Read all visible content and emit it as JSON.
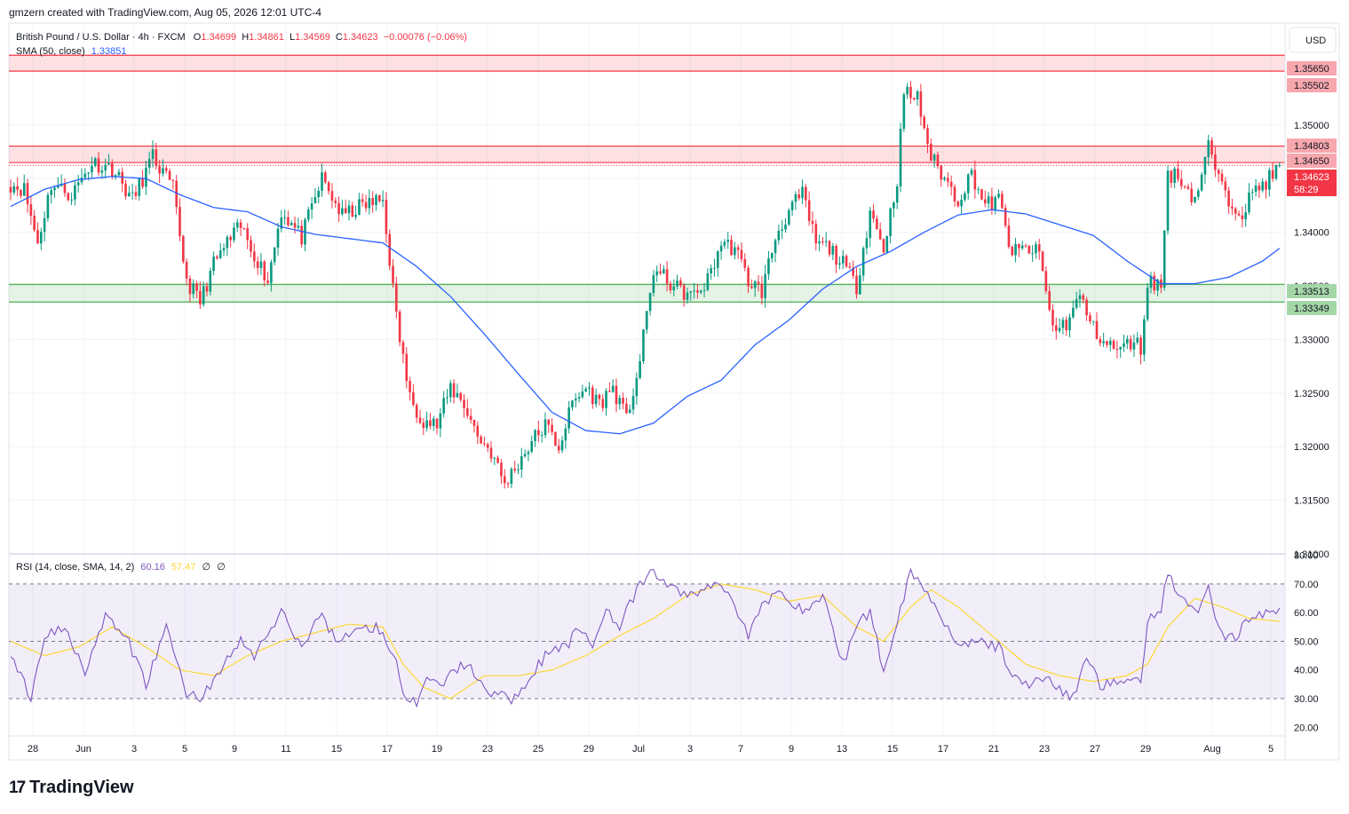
{
  "credit": "gmzern created with TradingView.com, Aug 05, 2026 12:01 UTC-4",
  "legend": {
    "symbol": "British Pound / U.S. Dollar · 4h · FXCM",
    "open_label": "O",
    "open": "1.34699",
    "high_label": "H",
    "high": "1.34861",
    "low_label": "L",
    "low": "1.34569",
    "close_label": "C",
    "close": "1.34623",
    "change": "−0.00076 (−0.06%)",
    "sma_label": "SMA (50, close)",
    "sma_value": "1.33851",
    "rsi_label": "RSI (14, close, SMA, 14, 2)",
    "rsi_value": "60.16",
    "rsi_ma_value": "57.47",
    "rsi_extra1": "∅",
    "rsi_extra2": "∅"
  },
  "currency_button": "USD",
  "brand": "TradingView",
  "colors": {
    "up": "#089981",
    "down": "#f23645",
    "sma": "#2962ff",
    "rsi": "#7e57c2",
    "rsi_ma": "#fdd835",
    "resistance": "#f23645",
    "support": "#4caf50"
  },
  "chart_data": [
    {
      "type": "candlestick",
      "title": "British Pound / U.S. Dollar · 4h · FXCM",
      "ylim": [
        1.31,
        1.3595
      ],
      "y_ticks": [
        "1.31000",
        "1.31500",
        "1.32000",
        "1.32500",
        "1.33000",
        "1.33500",
        "1.34000",
        "1.34500",
        "1.35000"
      ],
      "x_ticks": [
        "28",
        "Jun",
        "3",
        "5",
        "9",
        "11",
        "15",
        "17",
        "19",
        "23",
        "25",
        "29",
        "Jul",
        "3",
        "7",
        "9",
        "13",
        "15",
        "17",
        "21",
        "23",
        "27",
        "29",
        "Aug",
        "5"
      ],
      "price_labels": [
        {
          "text": "1.35650",
          "kind": "resistance",
          "value": 1.3565
        },
        {
          "text": "1.35502",
          "kind": "resistance",
          "value": 1.35502
        },
        {
          "text": "1.34803",
          "kind": "resistance",
          "value": 1.34803
        },
        {
          "text": "1.34650",
          "kind": "resistance",
          "value": 1.3465
        },
        {
          "text": "1.34623",
          "kind": "last",
          "value": 1.34623
        },
        {
          "text": "58:29",
          "kind": "countdown",
          "value": 1.34515
        },
        {
          "text": "1.33513",
          "kind": "support",
          "value": 1.33513
        },
        {
          "text": "1.33349",
          "kind": "support",
          "value": 1.33349
        }
      ],
      "zones": [
        {
          "kind": "resistance",
          "from": 1.35502,
          "to": 1.3565
        },
        {
          "kind": "resistance",
          "from": 1.3465,
          "to": 1.34803
        },
        {
          "kind": "support",
          "from": 1.33349,
          "to": 1.33513
        }
      ],
      "last_price": 1.34623,
      "price_anchors": [
        [
          0,
          1.3445
        ],
        [
          4,
          1.344
        ],
        [
          8,
          1.339
        ],
        [
          12,
          1.3445
        ],
        [
          18,
          1.3435
        ],
        [
          24,
          1.3465
        ],
        [
          30,
          1.346
        ],
        [
          36,
          1.343
        ],
        [
          42,
          1.347
        ],
        [
          48,
          1.344
        ],
        [
          52,
          1.3355
        ],
        [
          56,
          1.3335
        ],
        [
          60,
          1.337
        ],
        [
          64,
          1.339
        ],
        [
          68,
          1.3405
        ],
        [
          72,
          1.338
        ],
        [
          76,
          1.3355
        ],
        [
          80,
          1.342
        ],
        [
          86,
          1.3395
        ],
        [
          92,
          1.345
        ],
        [
          98,
          1.3415
        ],
        [
          104,
          1.3425
        ],
        [
          110,
          1.343
        ],
        [
          114,
          1.332
        ],
        [
          118,
          1.3245
        ],
        [
          122,
          1.3225
        ],
        [
          126,
          1.322
        ],
        [
          130,
          1.3255
        ],
        [
          134,
          1.324
        ],
        [
          138,
          1.321
        ],
        [
          142,
          1.3195
        ],
        [
          146,
          1.3165
        ],
        [
          150,
          1.3185
        ],
        [
          154,
          1.3205
        ],
        [
          158,
          1.322
        ],
        [
          162,
          1.32
        ],
        [
          166,
          1.324
        ],
        [
          170,
          1.3255
        ],
        [
          174,
          1.324
        ],
        [
          178,
          1.3255
        ],
        [
          182,
          1.3225
        ],
        [
          186,
          1.328
        ],
        [
          190,
          1.3365
        ],
        [
          194,
          1.3355
        ],
        [
          198,
          1.3345
        ],
        [
          202,
          1.334
        ],
        [
          206,
          1.3355
        ],
        [
          210,
          1.339
        ],
        [
          214,
          1.3385
        ],
        [
          218,
          1.3355
        ],
        [
          222,
          1.3345
        ],
        [
          226,
          1.3395
        ],
        [
          230,
          1.342
        ],
        [
          234,
          1.3435
        ],
        [
          238,
          1.339
        ],
        [
          242,
          1.3385
        ],
        [
          246,
          1.337
        ],
        [
          250,
          1.335
        ],
        [
          254,
          1.342
        ],
        [
          258,
          1.3385
        ],
        [
          262,
          1.345
        ],
        [
          264,
          1.353
        ],
        [
          268,
          1.3525
        ],
        [
          272,
          1.347
        ],
        [
          276,
          1.345
        ],
        [
          280,
          1.343
        ],
        [
          284,
          1.3455
        ],
        [
          288,
          1.3425
        ],
        [
          292,
          1.343
        ],
        [
          296,
          1.338
        ],
        [
          300,
          1.3385
        ],
        [
          304,
          1.338
        ],
        [
          308,
          1.331
        ],
        [
          312,
          1.3315
        ],
        [
          316,
          1.334
        ],
        [
          320,
          1.331
        ],
        [
          324,
          1.3295
        ],
        [
          328,
          1.329
        ],
        [
          332,
          1.33
        ],
        [
          334,
          1.329
        ],
        [
          336,
          1.3355
        ],
        [
          340,
          1.335
        ],
        [
          342,
          1.3455
        ],
        [
          346,
          1.345
        ],
        [
          350,
          1.343
        ],
        [
          354,
          1.348
        ],
        [
          358,
          1.344
        ],
        [
          360,
          1.343
        ],
        [
          364,
          1.342
        ],
        [
          368,
          1.344
        ],
        [
          372,
          1.345
        ],
        [
          375,
          1.3462
        ]
      ],
      "sma_anchors": [
        [
          0,
          1.3424
        ],
        [
          10,
          1.344
        ],
        [
          20,
          1.3449
        ],
        [
          30,
          1.3452
        ],
        [
          40,
          1.345
        ],
        [
          50,
          1.3435
        ],
        [
          60,
          1.3423
        ],
        [
          70,
          1.3419
        ],
        [
          80,
          1.3405
        ],
        [
          90,
          1.3398
        ],
        [
          100,
          1.3394
        ],
        [
          110,
          1.339
        ],
        [
          120,
          1.3368
        ],
        [
          130,
          1.334
        ],
        [
          140,
          1.3305
        ],
        [
          150,
          1.3268
        ],
        [
          160,
          1.3232
        ],
        [
          170,
          1.3215
        ],
        [
          180,
          1.3212
        ],
        [
          190,
          1.3222
        ],
        [
          200,
          1.3247
        ],
        [
          210,
          1.3262
        ],
        [
          220,
          1.3295
        ],
        [
          230,
          1.3318
        ],
        [
          240,
          1.3347
        ],
        [
          250,
          1.3368
        ],
        [
          260,
          1.3382
        ],
        [
          270,
          1.34
        ],
        [
          280,
          1.3416
        ],
        [
          290,
          1.3421
        ],
        [
          300,
          1.3417
        ],
        [
          310,
          1.3407
        ],
        [
          320,
          1.3397
        ],
        [
          330,
          1.3373
        ],
        [
          340,
          1.3352
        ],
        [
          350,
          1.3352
        ],
        [
          360,
          1.3358
        ],
        [
          370,
          1.3373
        ],
        [
          375,
          1.3385
        ]
      ]
    },
    {
      "type": "line",
      "title": "RSI (14, close, SMA, 14, 2)",
      "ylim": [
        17,
        80.5
      ],
      "y_ticks": [
        "20.00",
        "30.00",
        "40.00",
        "50.00",
        "60.00",
        "70.00",
        "80.00"
      ],
      "band": {
        "upper": 70,
        "middle": 50,
        "lower": 30
      },
      "series": [
        {
          "values_anchors": [
            [
              0,
              45
            ],
            [
              6,
              30
            ],
            [
              10,
              52
            ],
            [
              16,
              55
            ],
            [
              22,
              40
            ],
            [
              28,
              58
            ],
            [
              34,
              52
            ],
            [
              40,
              35
            ],
            [
              46,
              55
            ],
            [
              52,
              32
            ],
            [
              56,
              30
            ],
            [
              62,
              40
            ],
            [
              68,
              50
            ],
            [
              72,
              45
            ],
            [
              80,
              60
            ],
            [
              86,
              48
            ],
            [
              92,
              60
            ],
            [
              96,
              50
            ],
            [
              100,
              53
            ],
            [
              108,
              55
            ],
            [
              114,
              45
            ],
            [
              116,
              30
            ],
            [
              120,
              28
            ],
            [
              124,
              38
            ],
            [
              128,
              36
            ],
            [
              134,
              42
            ],
            [
              138,
              38
            ],
            [
              142,
              32
            ],
            [
              148,
              30
            ],
            [
              152,
              35
            ],
            [
              158,
              45
            ],
            [
              164,
              48
            ],
            [
              168,
              55
            ],
            [
              172,
              48
            ],
            [
              176,
              62
            ],
            [
              180,
              55
            ],
            [
              186,
              70
            ],
            [
              190,
              74
            ],
            [
              196,
              68
            ],
            [
              202,
              66
            ],
            [
              208,
              70
            ],
            [
              212,
              68
            ],
            [
              218,
              52
            ],
            [
              222,
              62
            ],
            [
              228,
              68
            ],
            [
              234,
              60
            ],
            [
              240,
              66
            ],
            [
              246,
              42
            ],
            [
              250,
              56
            ],
            [
              254,
              60
            ],
            [
              258,
              40
            ],
            [
              262,
              57
            ],
            [
              266,
              75
            ],
            [
              270,
              68
            ],
            [
              274,
              62
            ],
            [
              278,
              52
            ],
            [
              282,
              48
            ],
            [
              286,
              50
            ],
            [
              292,
              48
            ],
            [
              296,
              38
            ],
            [
              302,
              35
            ],
            [
              306,
              38
            ],
            [
              310,
              33
            ],
            [
              314,
              30
            ],
            [
              318,
              45
            ],
            [
              322,
              35
            ],
            [
              326,
              35
            ],
            [
              330,
              38
            ],
            [
              334,
              35
            ],
            [
              336,
              58
            ],
            [
              340,
              62
            ],
            [
              342,
              74
            ],
            [
              346,
              65
            ],
            [
              350,
              60
            ],
            [
              354,
              68
            ],
            [
              358,
              52
            ],
            [
              362,
              52
            ],
            [
              366,
              58
            ],
            [
              372,
              60
            ],
            [
              375,
              60
            ]
          ]
        },
        {
          "values_anchors": [
            [
              0,
              50
            ],
            [
              10,
              45
            ],
            [
              20,
              48
            ],
            [
              30,
              55
            ],
            [
              40,
              48
            ],
            [
              50,
              40
            ],
            [
              60,
              38
            ],
            [
              70,
              45
            ],
            [
              80,
              50
            ],
            [
              90,
              53
            ],
            [
              100,
              56
            ],
            [
              110,
              55
            ],
            [
              116,
              42
            ],
            [
              122,
              34
            ],
            [
              130,
              30
            ],
            [
              140,
              38
            ],
            [
              150,
              38
            ],
            [
              160,
              40
            ],
            [
              170,
              45
            ],
            [
              180,
              52
            ],
            [
              190,
              58
            ],
            [
              200,
              66
            ],
            [
              210,
              70
            ],
            [
              220,
              68
            ],
            [
              230,
              64
            ],
            [
              240,
              66
            ],
            [
              250,
              55
            ],
            [
              258,
              50
            ],
            [
              266,
              62
            ],
            [
              272,
              68
            ],
            [
              280,
              62
            ],
            [
              290,
              52
            ],
            [
              300,
              42
            ],
            [
              310,
              38
            ],
            [
              320,
              36
            ],
            [
              330,
              38
            ],
            [
              336,
              42
            ],
            [
              342,
              55
            ],
            [
              350,
              65
            ],
            [
              358,
              62
            ],
            [
              366,
              58
            ],
            [
              375,
              57
            ]
          ]
        }
      ]
    }
  ]
}
